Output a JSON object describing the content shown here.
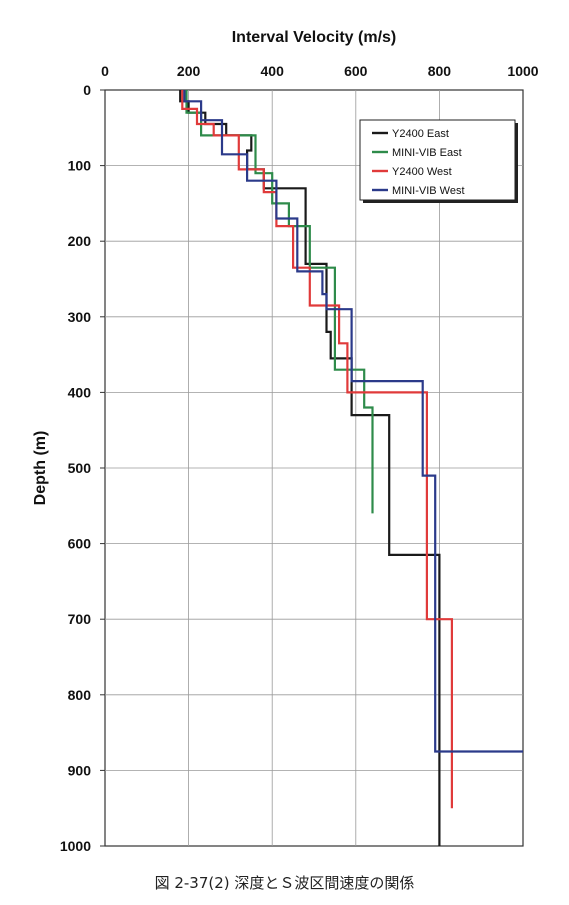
{
  "caption": "図 2-37(2)  深度とＳ波区間速度の関係",
  "chart_data": {
    "type": "line",
    "title": "",
    "xlabel": "Interval Velocity (m/s)",
    "ylabel": "Depth (m)",
    "xlim": [
      0,
      1000
    ],
    "ylim": [
      0,
      1000
    ],
    "y_inverted": true,
    "x_axis_position": "top",
    "x_ticks": [
      0,
      200,
      400,
      600,
      800,
      1000
    ],
    "y_ticks": [
      0,
      100,
      200,
      300,
      400,
      500,
      600,
      700,
      800,
      900,
      1000
    ],
    "grid": true,
    "legend_position": "top-right",
    "series": [
      {
        "name": "Y2400 East",
        "color": "#1a1a1a",
        "steps": [
          [
            180,
            0,
            15
          ],
          [
            200,
            15,
            30
          ],
          [
            240,
            30,
            45
          ],
          [
            290,
            45,
            60
          ],
          [
            350,
            60,
            80
          ],
          [
            340,
            80,
            105
          ],
          [
            380,
            105,
            130
          ],
          [
            480,
            130,
            230
          ],
          [
            530,
            230,
            320
          ],
          [
            540,
            320,
            355
          ],
          [
            590,
            355,
            430
          ],
          [
            680,
            430,
            615
          ],
          [
            800,
            615,
            1000
          ]
        ]
      },
      {
        "name": "MINI-VIB East",
        "color": "#2e8b4a",
        "steps": [
          [
            195,
            0,
            30
          ],
          [
            230,
            30,
            60
          ],
          [
            360,
            60,
            110
          ],
          [
            400,
            110,
            150
          ],
          [
            440,
            150,
            180
          ],
          [
            490,
            180,
            235
          ],
          [
            550,
            235,
            370
          ],
          [
            620,
            370,
            420
          ],
          [
            640,
            420,
            560
          ]
        ]
      },
      {
        "name": "Y2400 West",
        "color": "#e03a3a",
        "steps": [
          [
            185,
            0,
            25
          ],
          [
            220,
            25,
            45
          ],
          [
            260,
            45,
            60
          ],
          [
            320,
            60,
            105
          ],
          [
            380,
            105,
            135
          ],
          [
            410,
            135,
            180
          ],
          [
            450,
            180,
            235
          ],
          [
            490,
            235,
            285
          ],
          [
            560,
            285,
            335
          ],
          [
            580,
            335,
            400
          ],
          [
            770,
            400,
            700
          ],
          [
            830,
            700,
            950
          ]
        ]
      },
      {
        "name": "MINI-VIB West",
        "color": "#2b3a8a",
        "steps": [
          [
            190,
            0,
            15
          ],
          [
            230,
            15,
            40
          ],
          [
            280,
            40,
            85
          ],
          [
            340,
            85,
            120
          ],
          [
            410,
            120,
            170
          ],
          [
            460,
            170,
            240
          ],
          [
            520,
            240,
            270
          ],
          [
            530,
            270,
            290
          ],
          [
            590,
            290,
            385
          ],
          [
            760,
            385,
            510
          ],
          [
            790,
            510,
            875
          ],
          [
            1000,
            875,
            875
          ]
        ]
      }
    ]
  }
}
